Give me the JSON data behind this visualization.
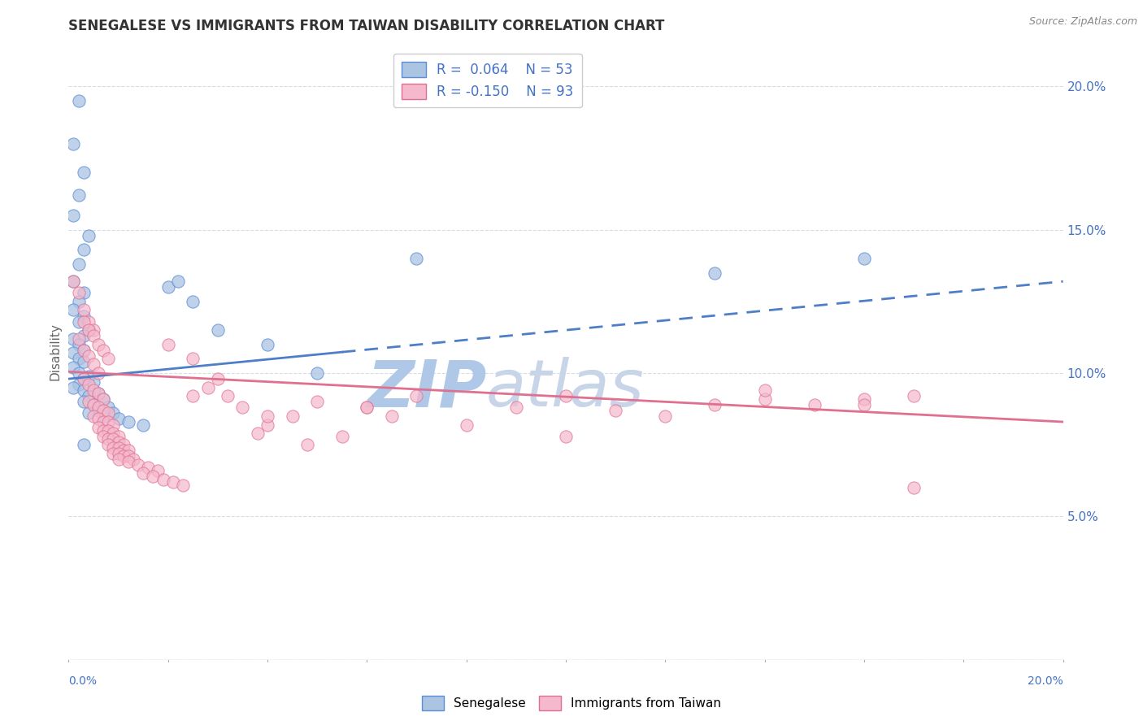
{
  "title": "SENEGALESE VS IMMIGRANTS FROM TAIWAN DISABILITY CORRELATION CHART",
  "source": "Source: ZipAtlas.com",
  "ylabel": "Disability",
  "watermark_zip": "ZIP",
  "watermark_atlas": "atlas",
  "xmin": 0.0,
  "xmax": 0.2,
  "ymin": 0.0,
  "ymax": 0.215,
  "yticks": [
    0.0,
    0.05,
    0.1,
    0.15,
    0.2
  ],
  "ytick_labels": [
    "",
    "5.0%",
    "10.0%",
    "15.0%",
    "20.0%"
  ],
  "series": [
    {
      "name": "Senegalese",
      "R": 0.064,
      "N": 53,
      "dot_color": "#aac4e2",
      "dot_edge_color": "#5b8dd9",
      "line_color": "#4f7ec9",
      "trend_x0": 0.0,
      "trend_x1": 0.2,
      "trend_y0": 0.098,
      "trend_y1": 0.132
    },
    {
      "name": "Immigrants from Taiwan",
      "R": -0.15,
      "N": 93,
      "dot_color": "#f5b8cc",
      "dot_edge_color": "#e07090",
      "line_color": "#e07090",
      "trend_x0": 0.0,
      "trend_x1": 0.2,
      "trend_y0": 0.1005,
      "trend_y1": 0.083
    }
  ],
  "blue_points_x": [
    0.002,
    0.001,
    0.003,
    0.002,
    0.001,
    0.004,
    0.003,
    0.002,
    0.001,
    0.003,
    0.002,
    0.001,
    0.003,
    0.002,
    0.004,
    0.003,
    0.001,
    0.002,
    0.003,
    0.001,
    0.002,
    0.003,
    0.001,
    0.002,
    0.004,
    0.003,
    0.005,
    0.002,
    0.001,
    0.003,
    0.006,
    0.004,
    0.007,
    0.003,
    0.005,
    0.008,
    0.006,
    0.004,
    0.009,
    0.007,
    0.01,
    0.012,
    0.015,
    0.02,
    0.025,
    0.03,
    0.04,
    0.05,
    0.07,
    0.13,
    0.16,
    0.003,
    0.022
  ],
  "blue_points_y": [
    0.195,
    0.18,
    0.17,
    0.162,
    0.155,
    0.148,
    0.143,
    0.138,
    0.132,
    0.128,
    0.125,
    0.122,
    0.12,
    0.118,
    0.115,
    0.113,
    0.112,
    0.11,
    0.108,
    0.107,
    0.105,
    0.104,
    0.102,
    0.1,
    0.099,
    0.098,
    0.097,
    0.096,
    0.095,
    0.094,
    0.093,
    0.092,
    0.091,
    0.09,
    0.089,
    0.088,
    0.087,
    0.086,
    0.086,
    0.085,
    0.084,
    0.083,
    0.082,
    0.13,
    0.125,
    0.115,
    0.11,
    0.1,
    0.14,
    0.135,
    0.14,
    0.075,
    0.132
  ],
  "pink_points_x": [
    0.001,
    0.002,
    0.003,
    0.004,
    0.005,
    0.002,
    0.003,
    0.004,
    0.005,
    0.006,
    0.003,
    0.004,
    0.005,
    0.006,
    0.007,
    0.004,
    0.005,
    0.006,
    0.007,
    0.008,
    0.005,
    0.006,
    0.007,
    0.008,
    0.009,
    0.006,
    0.007,
    0.008,
    0.009,
    0.01,
    0.007,
    0.008,
    0.009,
    0.01,
    0.011,
    0.008,
    0.009,
    0.01,
    0.011,
    0.012,
    0.009,
    0.01,
    0.011,
    0.012,
    0.013,
    0.01,
    0.012,
    0.014,
    0.016,
    0.018,
    0.015,
    0.017,
    0.019,
    0.021,
    0.023,
    0.02,
    0.025,
    0.03,
    0.028,
    0.032,
    0.035,
    0.04,
    0.038,
    0.045,
    0.05,
    0.048,
    0.055,
    0.06,
    0.065,
    0.07,
    0.08,
    0.09,
    0.1,
    0.11,
    0.12,
    0.13,
    0.14,
    0.15,
    0.16,
    0.17,
    0.003,
    0.004,
    0.005,
    0.006,
    0.007,
    0.008,
    0.025,
    0.04,
    0.06,
    0.1,
    0.14,
    0.16,
    0.17
  ],
  "pink_points_y": [
    0.132,
    0.128,
    0.122,
    0.118,
    0.115,
    0.112,
    0.108,
    0.106,
    0.103,
    0.1,
    0.098,
    0.096,
    0.094,
    0.093,
    0.091,
    0.09,
    0.089,
    0.088,
    0.087,
    0.086,
    0.085,
    0.084,
    0.083,
    0.083,
    0.082,
    0.081,
    0.08,
    0.08,
    0.079,
    0.078,
    0.078,
    0.077,
    0.077,
    0.076,
    0.075,
    0.075,
    0.074,
    0.074,
    0.073,
    0.073,
    0.072,
    0.072,
    0.071,
    0.071,
    0.07,
    0.07,
    0.069,
    0.068,
    0.067,
    0.066,
    0.065,
    0.064,
    0.063,
    0.062,
    0.061,
    0.11,
    0.105,
    0.098,
    0.095,
    0.092,
    0.088,
    0.082,
    0.079,
    0.085,
    0.09,
    0.075,
    0.078,
    0.088,
    0.085,
    0.092,
    0.082,
    0.088,
    0.092,
    0.087,
    0.085,
    0.089,
    0.091,
    0.089,
    0.091,
    0.092,
    0.118,
    0.115,
    0.113,
    0.11,
    0.108,
    0.105,
    0.092,
    0.085,
    0.088,
    0.078,
    0.094,
    0.089,
    0.06
  ],
  "background_color": "#ffffff",
  "grid_color": "#d8dce8",
  "title_color": "#333333",
  "axis_label_color": "#4472c4",
  "legend_R_color": "#4472c4",
  "watermark_color_zip": "#b0c8e8",
  "watermark_color_atlas": "#c8d4e8"
}
